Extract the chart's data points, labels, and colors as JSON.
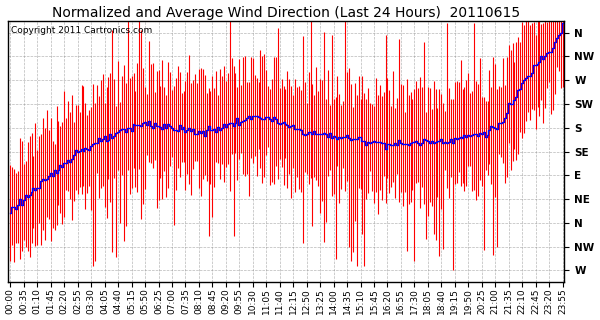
{
  "title": "Normalized and Average Wind Direction (Last 24 Hours)  20110615",
  "copyright": "Copyright 2011 Cartronics.com",
  "ytick_labels": [
    "N",
    "NW",
    "W",
    "SW",
    "S",
    "SE",
    "E",
    "NE",
    "N",
    "NW",
    "W"
  ],
  "ytick_values": [
    11,
    10,
    9,
    8,
    7,
    6,
    5,
    4,
    3,
    2,
    1
  ],
  "ylim": [
    0.5,
    11.5
  ],
  "background_color": "#ffffff",
  "plot_bg_color": "#ffffff",
  "grid_color": "#888888",
  "red_color": "#ff0000",
  "blue_color": "#0000ff",
  "title_fontsize": 10,
  "copyright_fontsize": 6.5,
  "tick_fontsize": 6.5,
  "n_points": 288,
  "xtick_step": 7
}
